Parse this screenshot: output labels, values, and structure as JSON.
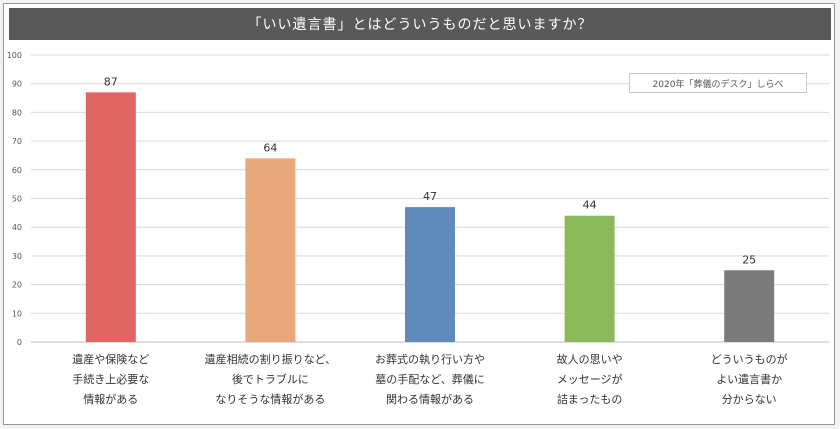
{
  "title": "「いい遺言書」とはどういうものだと思いますか？",
  "note": "2020年「葬儀のデスク」しらべ",
  "chart_data": {
    "type": "bar",
    "title": "「いい遺言書」とはどういうものだと思いますか？",
    "categories": [
      [
        "遺産や保険など",
        "手続き上必要な",
        "情報がある"
      ],
      [
        "遺産相続の割り振りなど、",
        "後でトラブルに",
        "なりそうな情報がある"
      ],
      [
        "お葬式の執り行い方や",
        "墓の手配など、葬儀に",
        "関わる情報がある"
      ],
      [
        "故人の思いや",
        "メッセージが",
        "詰まったもの"
      ],
      [
        "どういうものが",
        "よい遺言書か",
        "分からない"
      ]
    ],
    "values": [
      87,
      64,
      47,
      44,
      25
    ],
    "colors": [
      "#e06666",
      "#e8a87c",
      "#5f8ab9",
      "#8cba5a",
      "#7b7b7b"
    ],
    "ylim": [
      0,
      100
    ],
    "yticks": [
      0,
      10,
      20,
      30,
      40,
      50,
      60,
      70,
      80,
      90,
      100
    ],
    "grid": true,
    "data_labels": true,
    "xlabel": "",
    "ylabel": ""
  }
}
